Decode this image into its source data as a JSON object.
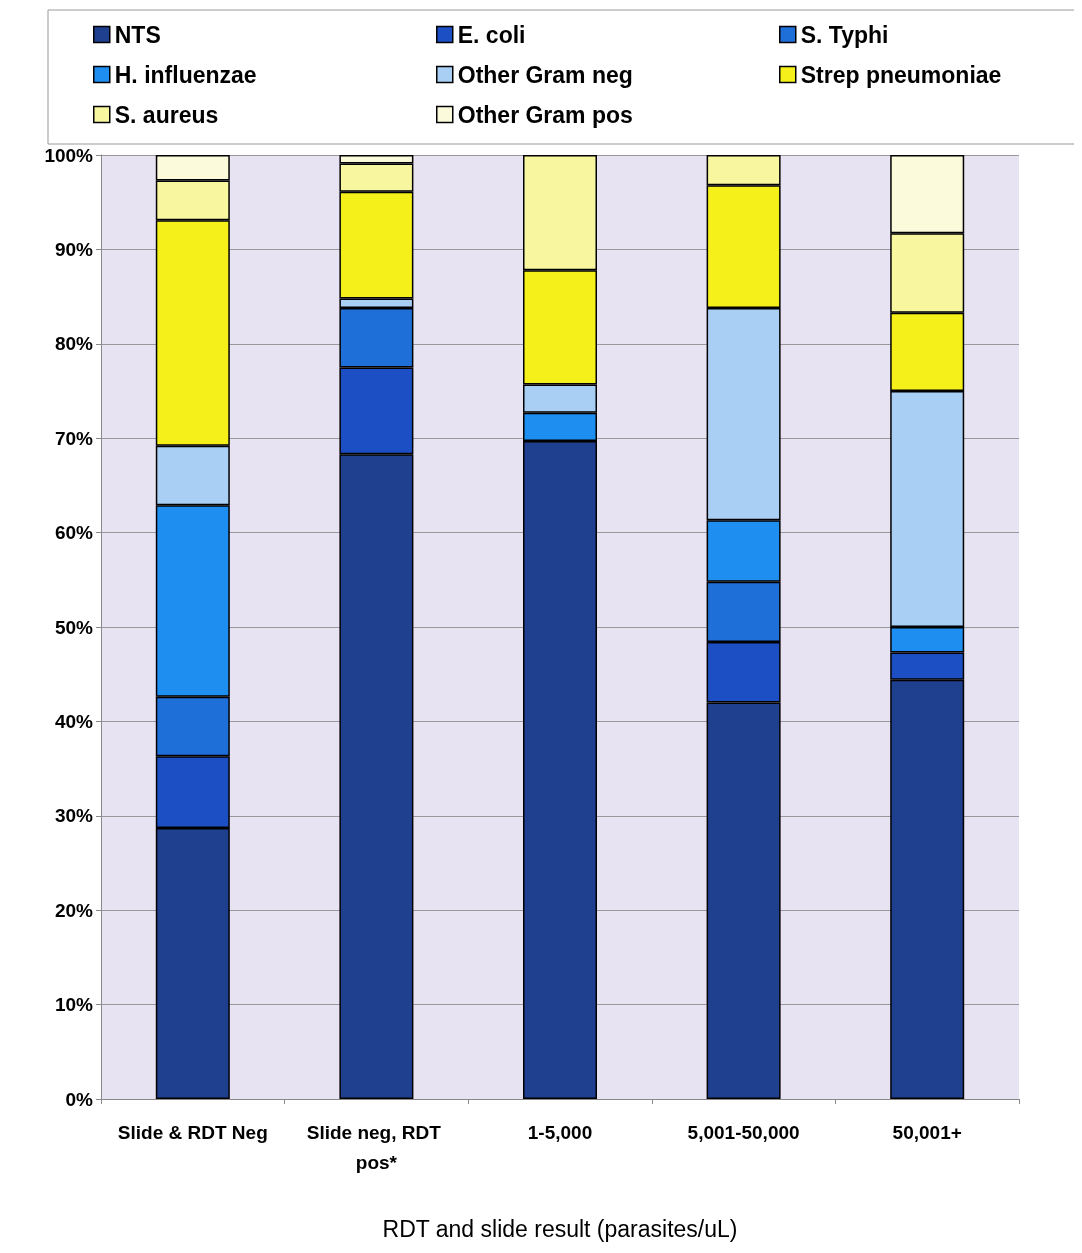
{
  "chart_data": {
    "type": "bar",
    "stacked": true,
    "xlabel": "RDT and slide result (parasites/uL)",
    "categories": [
      "Slide & RDT Neg",
      "Slide neg, RDT pos*",
      "1-5,000",
      "5,001-50,000",
      "50,001+"
    ],
    "series": [
      {
        "name": "NTS",
        "color": "#1f3f8f",
        "values": [
          28.7,
          68.3,
          69.7,
          42.0,
          44.4
        ]
      },
      {
        "name": "E. coli",
        "color": "#1c4fc4",
        "values": [
          7.6,
          9.2,
          0,
          6.4,
          2.9
        ]
      },
      {
        "name": "S. Typhi",
        "color": "#1f6fd8",
        "values": [
          6.3,
          6.3,
          0,
          6.4,
          0
        ]
      },
      {
        "name": "H. influenzae",
        "color": "#1e8ef0",
        "values": [
          20.3,
          0,
          3.0,
          6.5,
          2.7
        ]
      },
      {
        "name": "Other Gram neg",
        "color": "#a9cff5",
        "values": [
          6.3,
          1.0,
          3.0,
          22.5,
          25.0
        ]
      },
      {
        "name": "Strep pneumoniae",
        "color": "#f5f01a",
        "values": [
          23.9,
          11.3,
          12.1,
          13.0,
          8.3
        ]
      },
      {
        "name": "S. aureus",
        "color": "#f8f7a0",
        "values": [
          4.2,
          3.0,
          12.2,
          3.2,
          8.4
        ]
      },
      {
        "name": "Other Gram pos",
        "color": "#fbfadb",
        "values": [
          2.7,
          0.9,
          0,
          0,
          8.3
        ]
      }
    ],
    "ylim": [
      0,
      100
    ],
    "yticks": [
      {
        "value": 0,
        "label": "0%"
      },
      {
        "value": 10,
        "label": "10%"
      },
      {
        "value": 20,
        "label": "20%"
      },
      {
        "value": 30,
        "label": "30%"
      },
      {
        "value": 40,
        "label": "40%"
      },
      {
        "value": 50,
        "label": "50%"
      },
      {
        "value": 60,
        "label": "60%"
      },
      {
        "value": 70,
        "label": "70%"
      },
      {
        "value": 80,
        "label": "80%"
      },
      {
        "value": 90,
        "label": "90%"
      },
      {
        "value": 100,
        "label": "100%"
      }
    ],
    "grid": "y",
    "legend": "top"
  }
}
